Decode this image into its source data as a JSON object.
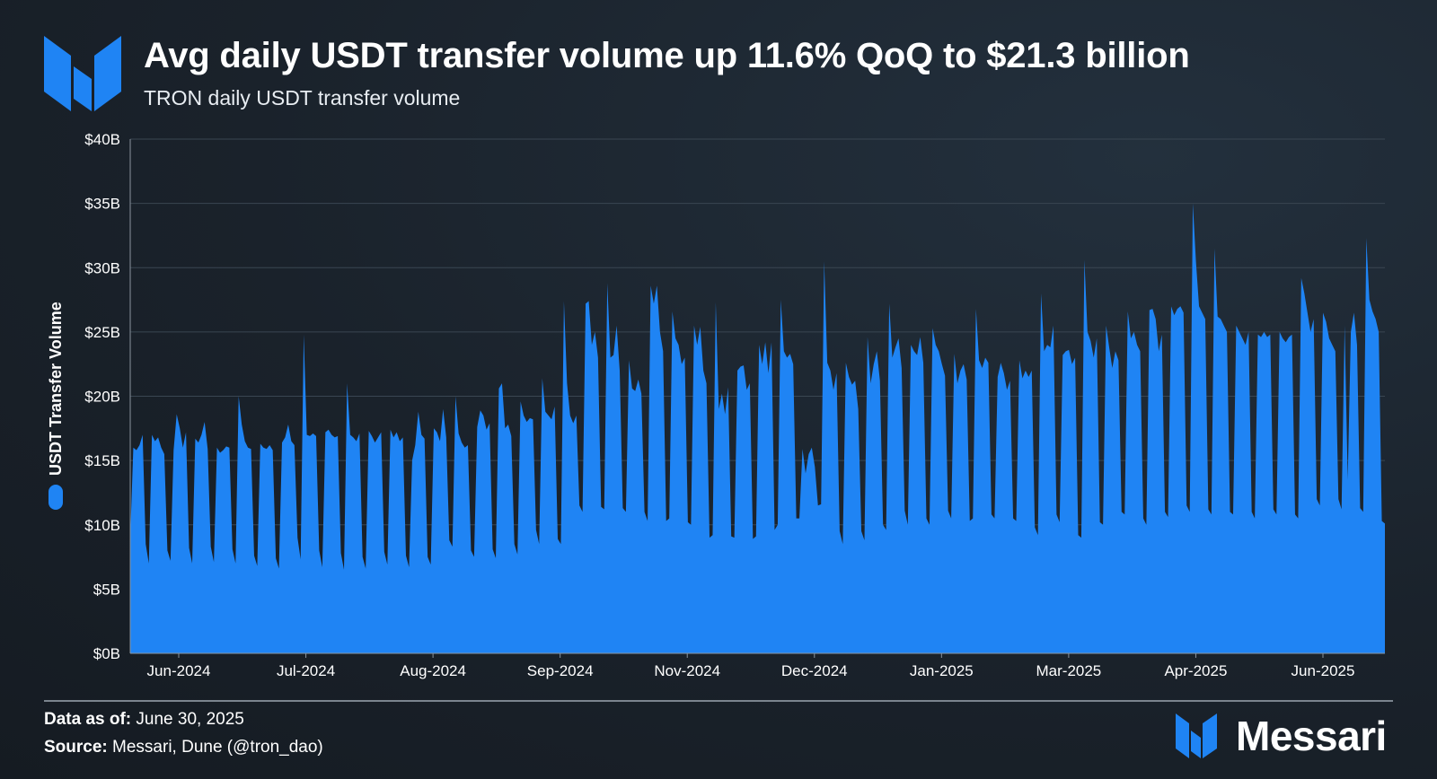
{
  "header": {
    "title": "Avg daily USDT transfer volume up 11.6% QoQ to $21.3 billion",
    "subtitle": "TRON daily USDT transfer volume"
  },
  "footer": {
    "data_as_of_label": "Data as of:",
    "data_as_of_value": " June 30, 2025",
    "source_label": "Source:",
    "source_value": " Messari, Dune (@tron_dao)",
    "brand": "Messari"
  },
  "colors": {
    "series": "#1f84f4",
    "grid": "#3a4652",
    "background": "#1a222b"
  },
  "icons": [
    "messari-logo-icon",
    "legend-dot-icon"
  ],
  "chart_data": {
    "type": "area",
    "ylabel": "USDT Transfer Volume",
    "ylim": [
      0,
      40
    ],
    "y_unit": "B",
    "y_ticks": [
      "$0B",
      "$5B",
      "$10B",
      "$15B",
      "$20B",
      "$25B",
      "$30B",
      "$35B",
      "$40B"
    ],
    "x_tick_labels": [
      "Jun-2024",
      "Jul-2024",
      "Aug-2024",
      "Sep-2024",
      "Nov-2024",
      "Dec-2024",
      "Jan-2025",
      "Mar-2025",
      "Apr-2025",
      "Jun-2025"
    ],
    "grid": true,
    "legend": "left, rotated with axis title",
    "series": [
      {
        "name": "USDT Transfer Volume",
        "weekly_pattern": "five weekday values followed by two weekend dips",
        "values": [
          9.0,
          16.0,
          15.8,
          16.2,
          17.0,
          8.5,
          7.0,
          17.0,
          16.5,
          16.8,
          16.0,
          15.5,
          8.0,
          7.2,
          15.8,
          18.6,
          17.5,
          16.0,
          17.2,
          8.2,
          7.0,
          16.7,
          16.4,
          17.0,
          18.0,
          15.9,
          8.3,
          7.1,
          16.0,
          15.6,
          15.8,
          16.1,
          16.0,
          8.1,
          7.0,
          20.0,
          17.8,
          16.5,
          16.0,
          15.9,
          7.6,
          6.8,
          16.3,
          16.0,
          15.9,
          16.2,
          15.8,
          7.4,
          6.6,
          16.4,
          16.8,
          17.8,
          16.5,
          16.2,
          9.0,
          7.3,
          24.8,
          17.0,
          16.9,
          17.1,
          16.9,
          8.0,
          6.7,
          17.2,
          17.4,
          17.0,
          16.8,
          16.9,
          7.8,
          6.5,
          21.0,
          17.0,
          16.8,
          16.5,
          17.1,
          7.5,
          6.6,
          17.3,
          16.9,
          16.4,
          16.8,
          17.2,
          7.9,
          6.9,
          17.4,
          16.8,
          17.2,
          16.5,
          16.8,
          7.6,
          6.7,
          15.0,
          16.2,
          18.8,
          17.0,
          16.7,
          7.5,
          6.9,
          17.5,
          17.2,
          16.5,
          19.0,
          16.8,
          8.8,
          8.3,
          20.0,
          17.1,
          16.4,
          16.0,
          16.2,
          8.0,
          7.5,
          17.6,
          18.9,
          18.5,
          17.4,
          17.9,
          8.1,
          7.4,
          20.6,
          21.0,
          17.5,
          17.8,
          16.9,
          8.5,
          7.7,
          19.6,
          18.5,
          18.0,
          18.3,
          18.2,
          9.6,
          8.5,
          21.4,
          18.8,
          18.5,
          18.2,
          19.2,
          8.9,
          8.5,
          27.4,
          21.0,
          18.5,
          17.9,
          18.5,
          11.5,
          11.0,
          27.2,
          27.4,
          24.0,
          25.0,
          23.0,
          11.4,
          11.2,
          28.8,
          23.0,
          23.2,
          25.5,
          22.0,
          11.3,
          11.0,
          22.8,
          20.6,
          20.4,
          21.3,
          20.2,
          11.0,
          10.3,
          28.6,
          27.2,
          28.6,
          25.0,
          23.5,
          10.3,
          10.5,
          26.6,
          24.5,
          24.0,
          22.5,
          23.0,
          10.2,
          10.0,
          25.5,
          24.0,
          25.4,
          22.0,
          21.0,
          9.0,
          9.2,
          27.3,
          19.0,
          20.2,
          18.6,
          20.7,
          9.1,
          9.0,
          22.0,
          22.3,
          22.4,
          20.5,
          21.0,
          8.9,
          9.1,
          24.0,
          22.5,
          24.2,
          21.8,
          24.2,
          9.6,
          10.0,
          27.5,
          23.5,
          23.0,
          23.3,
          22.5,
          10.5,
          10.5,
          15.9,
          14.0,
          15.5,
          16.0,
          14.5,
          11.5,
          11.6,
          30.5,
          22.6,
          22.0,
          20.5,
          21.8,
          9.5,
          8.5,
          22.6,
          21.5,
          20.9,
          21.2,
          19.0,
          9.5,
          8.8,
          24.6,
          21.0,
          22.5,
          23.5,
          21.2,
          10.0,
          9.6,
          27.2,
          23.0,
          23.8,
          24.5,
          22.2,
          11.1,
          10.0,
          24.0,
          23.5,
          23.2,
          24.6,
          22.6,
          10.5,
          10.0,
          25.3,
          24.0,
          23.5,
          22.5,
          21.6,
          11.1,
          10.5,
          23.3,
          21.0,
          22.0,
          22.5,
          21.3,
          10.3,
          10.5,
          26.8,
          22.8,
          22.2,
          23.0,
          22.6,
          10.8,
          10.5,
          21.5,
          22.6,
          21.8,
          20.5,
          21.2,
          10.5,
          10.3,
          22.8,
          21.4,
          22.0,
          21.5,
          22.0,
          9.8,
          9.2,
          28.0,
          23.5,
          24.0,
          23.8,
          25.5,
          10.8,
          10.2,
          23.2,
          23.5,
          23.6,
          22.5,
          23.0,
          9.2,
          9.0,
          30.6,
          25.0,
          24.3,
          23.0,
          24.5,
          10.2,
          10.0,
          25.5,
          23.8,
          22.2,
          23.5,
          22.8,
          11.0,
          10.8,
          26.6,
          24.5,
          25.0,
          24.0,
          23.5,
          10.5,
          10.0,
          26.7,
          26.8,
          26.0,
          23.5,
          24.8,
          11.0,
          10.6,
          27.0,
          26.3,
          26.8,
          27.0,
          26.5,
          11.5,
          11.0,
          35.0,
          30.5,
          27.0,
          26.5,
          26.0,
          11.2,
          10.8,
          31.5,
          26.2,
          26.0,
          25.5,
          25.0,
          11.0,
          10.8,
          25.5,
          25.0,
          24.5,
          24.0,
          25.0,
          11.0,
          10.5,
          24.8,
          24.6,
          25.0,
          24.6,
          24.8,
          11.2,
          10.8,
          25.0,
          24.5,
          24.2,
          24.6,
          24.8,
          10.8,
          10.5,
          29.2,
          28.0,
          26.5,
          25.0,
          26.0,
          12.0,
          11.5,
          26.5,
          25.8,
          24.5,
          24.0,
          23.5,
          12.0,
          11.2,
          25.5,
          13.5,
          25.0,
          26.5,
          24.0,
          11.3,
          11.0,
          32.3,
          27.5,
          26.6,
          26.0,
          25.0,
          10.3,
          10.1
        ]
      }
    ]
  }
}
